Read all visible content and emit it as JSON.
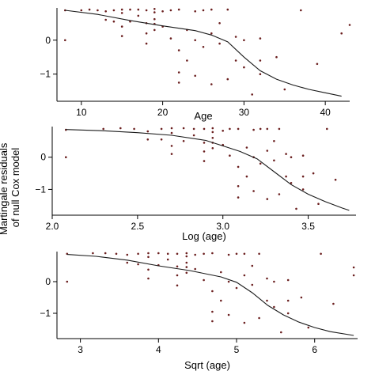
{
  "figure": {
    "ylabel_line1": "Martingale residuals",
    "ylabel_line2": "of null Cox model"
  },
  "chart_data": [
    {
      "type": "scatter",
      "xlabel": "Age",
      "xlim": [
        7,
        43
      ],
      "ylim": [
        -1.8,
        0.95
      ],
      "xticks": [
        10,
        20,
        30,
        40
      ],
      "yticks": [
        0,
        -1
      ],
      "series": [
        {
          "points": [
            [
              8,
              0.88
            ],
            [
              8,
              0.0
            ],
            [
              10,
              0.88
            ],
            [
              11,
              0.9
            ],
            [
              12,
              0.88
            ],
            [
              13,
              0.85
            ],
            [
              13,
              0.6
            ],
            [
              14,
              0.88
            ],
            [
              14,
              0.55
            ],
            [
              15,
              0.9
            ],
            [
              15,
              0.8
            ],
            [
              15,
              0.4
            ],
            [
              15,
              0.12
            ],
            [
              16,
              0.9
            ],
            [
              16,
              0.55
            ],
            [
              17,
              0.9
            ],
            [
              17,
              0.72
            ],
            [
              18,
              0.88
            ],
            [
              18,
              0.5
            ],
            [
              18,
              0.2
            ],
            [
              18,
              -0.1
            ],
            [
              19,
              0.92
            ],
            [
              19,
              0.82
            ],
            [
              19,
              0.62
            ],
            [
              19,
              0.48
            ],
            [
              19,
              0.3
            ],
            [
              20,
              0.85
            ],
            [
              20,
              0.4
            ],
            [
              21,
              0.88
            ],
            [
              21,
              0.05
            ],
            [
              22,
              0.9
            ],
            [
              22,
              -0.3
            ],
            [
              22,
              -0.95
            ],
            [
              22,
              -1.25
            ],
            [
              23,
              0.3
            ],
            [
              23,
              -0.6
            ],
            [
              24,
              0.85
            ],
            [
              24,
              0.0
            ],
            [
              24,
              -1.05
            ],
            [
              25,
              0.88
            ],
            [
              25,
              -0.2
            ],
            [
              26,
              0.9
            ],
            [
              26,
              0.2
            ],
            [
              26,
              -1.3
            ],
            [
              27,
              0.5
            ],
            [
              27,
              -0.1
            ],
            [
              28,
              0.9
            ],
            [
              28,
              -1.15
            ],
            [
              29,
              0.1
            ],
            [
              29,
              -0.6
            ],
            [
              30,
              0.0
            ],
            [
              30,
              -0.8
            ],
            [
              31,
              -1.6
            ],
            [
              32,
              0.05
            ],
            [
              32,
              -0.6
            ],
            [
              32,
              -1.0
            ],
            [
              34,
              -0.5
            ],
            [
              35,
              -1.45
            ],
            [
              37,
              0.88
            ],
            [
              39,
              -0.7
            ],
            [
              42,
              0.2
            ],
            [
              43,
              0.45
            ]
          ],
          "smooth": [
            [
              8,
              0.88
            ],
            [
              12,
              0.76
            ],
            [
              16,
              0.58
            ],
            [
              20,
              0.42
            ],
            [
              24,
              0.28
            ],
            [
              26,
              0.15
            ],
            [
              28,
              -0.05
            ],
            [
              30,
              -0.5
            ],
            [
              32,
              -0.9
            ],
            [
              34,
              -1.15
            ],
            [
              36,
              -1.32
            ],
            [
              38,
              -1.45
            ],
            [
              40,
              -1.55
            ],
            [
              42,
              -1.65
            ]
          ]
        }
      ]
    },
    {
      "type": "scatter",
      "xlabel": "Log (age)",
      "xlim": [
        2.0,
        3.78
      ],
      "ylim": [
        -1.8,
        0.95
      ],
      "xticks": [
        2.0,
        2.5,
        3.0,
        3.5
      ],
      "xtick_labels": [
        "2.0",
        "2.5",
        "3.0",
        "3.5"
      ],
      "yticks": [
        0,
        -1
      ],
      "series": [
        {
          "points": [
            [
              2.08,
              0.85
            ],
            [
              2.08,
              0.0
            ],
            [
              2.3,
              0.88
            ],
            [
              2.4,
              0.9
            ],
            [
              2.48,
              0.88
            ],
            [
              2.56,
              0.8
            ],
            [
              2.56,
              0.55
            ],
            [
              2.64,
              0.88
            ],
            [
              2.64,
              0.55
            ],
            [
              2.7,
              0.9
            ],
            [
              2.7,
              0.75
            ],
            [
              2.7,
              0.35
            ],
            [
              2.7,
              0.1
            ],
            [
              2.77,
              0.9
            ],
            [
              2.77,
              0.5
            ],
            [
              2.83,
              0.88
            ],
            [
              2.83,
              0.68
            ],
            [
              2.89,
              0.88
            ],
            [
              2.89,
              0.45
            ],
            [
              2.89,
              0.18
            ],
            [
              2.89,
              -0.12
            ],
            [
              2.94,
              0.9
            ],
            [
              2.94,
              0.78
            ],
            [
              2.94,
              0.6
            ],
            [
              2.94,
              0.45
            ],
            [
              2.94,
              0.28
            ],
            [
              3.0,
              0.82
            ],
            [
              3.0,
              0.38
            ],
            [
              3.04,
              0.88
            ],
            [
              3.04,
              0.05
            ],
            [
              3.09,
              0.88
            ],
            [
              3.09,
              -0.3
            ],
            [
              3.09,
              -0.9
            ],
            [
              3.09,
              -1.25
            ],
            [
              3.14,
              0.3
            ],
            [
              3.14,
              -0.6
            ],
            [
              3.18,
              0.85
            ],
            [
              3.18,
              0.0
            ],
            [
              3.18,
              -1.05
            ],
            [
              3.22,
              0.88
            ],
            [
              3.22,
              -0.2
            ],
            [
              3.26,
              0.88
            ],
            [
              3.26,
              0.2
            ],
            [
              3.26,
              -1.3
            ],
            [
              3.3,
              0.5
            ],
            [
              3.3,
              -0.1
            ],
            [
              3.33,
              0.88
            ],
            [
              3.33,
              -1.15
            ],
            [
              3.37,
              0.1
            ],
            [
              3.37,
              -0.6
            ],
            [
              3.4,
              0.0
            ],
            [
              3.4,
              -0.8
            ],
            [
              3.43,
              -1.6
            ],
            [
              3.47,
              0.05
            ],
            [
              3.47,
              -0.6
            ],
            [
              3.47,
              -1.0
            ],
            [
              3.53,
              -0.5
            ],
            [
              3.56,
              -1.45
            ],
            [
              3.61,
              0.88
            ],
            [
              3.66,
              -0.7
            ]
          ],
          "smooth": [
            [
              2.08,
              0.86
            ],
            [
              2.3,
              0.82
            ],
            [
              2.5,
              0.76
            ],
            [
              2.7,
              0.68
            ],
            [
              2.9,
              0.52
            ],
            [
              3.0,
              0.35
            ],
            [
              3.1,
              0.18
            ],
            [
              3.2,
              -0.05
            ],
            [
              3.3,
              -0.45
            ],
            [
              3.4,
              -0.85
            ],
            [
              3.5,
              -1.15
            ],
            [
              3.6,
              -1.38
            ],
            [
              3.7,
              -1.58
            ],
            [
              3.74,
              -1.65
            ]
          ]
        }
      ]
    },
    {
      "type": "scatter",
      "xlabel": "Sqrt (age)",
      "xlim": [
        2.7,
        6.55
      ],
      "ylim": [
        -1.8,
        0.95
      ],
      "xticks": [
        3,
        4,
        5,
        6
      ],
      "yticks": [
        0,
        -1
      ],
      "series": [
        {
          "points": [
            [
              2.83,
              0.88
            ],
            [
              2.83,
              0.0
            ],
            [
              3.16,
              0.9
            ],
            [
              3.32,
              0.9
            ],
            [
              3.46,
              0.88
            ],
            [
              3.6,
              0.85
            ],
            [
              3.6,
              0.6
            ],
            [
              3.74,
              0.88
            ],
            [
              3.74,
              0.55
            ],
            [
              3.87,
              0.9
            ],
            [
              3.87,
              0.78
            ],
            [
              3.87,
              0.38
            ],
            [
              3.87,
              0.1
            ],
            [
              4.0,
              0.9
            ],
            [
              4.0,
              0.52
            ],
            [
              4.12,
              0.88
            ],
            [
              4.12,
              0.7
            ],
            [
              4.24,
              0.88
            ],
            [
              4.24,
              0.48
            ],
            [
              4.24,
              0.2
            ],
            [
              4.24,
              -0.12
            ],
            [
              4.36,
              0.9
            ],
            [
              4.36,
              0.8
            ],
            [
              4.36,
              0.6
            ],
            [
              4.36,
              0.46
            ],
            [
              4.36,
              0.28
            ],
            [
              4.47,
              0.85
            ],
            [
              4.47,
              0.4
            ],
            [
              4.58,
              0.88
            ],
            [
              4.58,
              0.05
            ],
            [
              4.69,
              0.9
            ],
            [
              4.69,
              -0.3
            ],
            [
              4.69,
              -0.95
            ],
            [
              4.69,
              -1.25
            ],
            [
              4.8,
              0.3
            ],
            [
              4.8,
              -0.6
            ],
            [
              4.9,
              0.85
            ],
            [
              4.9,
              0.0
            ],
            [
              4.9,
              -1.05
            ],
            [
              5.0,
              0.88
            ],
            [
              5.0,
              -0.2
            ],
            [
              5.1,
              0.88
            ],
            [
              5.1,
              0.2
            ],
            [
              5.1,
              -1.3
            ],
            [
              5.2,
              0.5
            ],
            [
              5.2,
              -0.1
            ],
            [
              5.29,
              0.88
            ],
            [
              5.29,
              -1.15
            ],
            [
              5.39,
              0.1
            ],
            [
              5.39,
              -0.6
            ],
            [
              5.48,
              0.0
            ],
            [
              5.48,
              -0.8
            ],
            [
              5.57,
              -1.6
            ],
            [
              5.66,
              0.05
            ],
            [
              5.66,
              -0.6
            ],
            [
              5.66,
              -1.0
            ],
            [
              5.83,
              -0.5
            ],
            [
              5.92,
              -1.45
            ],
            [
              6.08,
              0.88
            ],
            [
              6.24,
              -0.7
            ],
            [
              6.5,
              0.2
            ],
            [
              6.5,
              0.45
            ]
          ],
          "smooth": [
            [
              2.83,
              0.86
            ],
            [
              3.2,
              0.8
            ],
            [
              3.6,
              0.68
            ],
            [
              4.0,
              0.5
            ],
            [
              4.4,
              0.35
            ],
            [
              4.8,
              0.15
            ],
            [
              5.0,
              -0.02
            ],
            [
              5.2,
              -0.35
            ],
            [
              5.4,
              -0.75
            ],
            [
              5.6,
              -1.05
            ],
            [
              5.8,
              -1.28
            ],
            [
              6.0,
              -1.45
            ],
            [
              6.2,
              -1.58
            ],
            [
              6.5,
              -1.7
            ]
          ]
        }
      ]
    }
  ]
}
